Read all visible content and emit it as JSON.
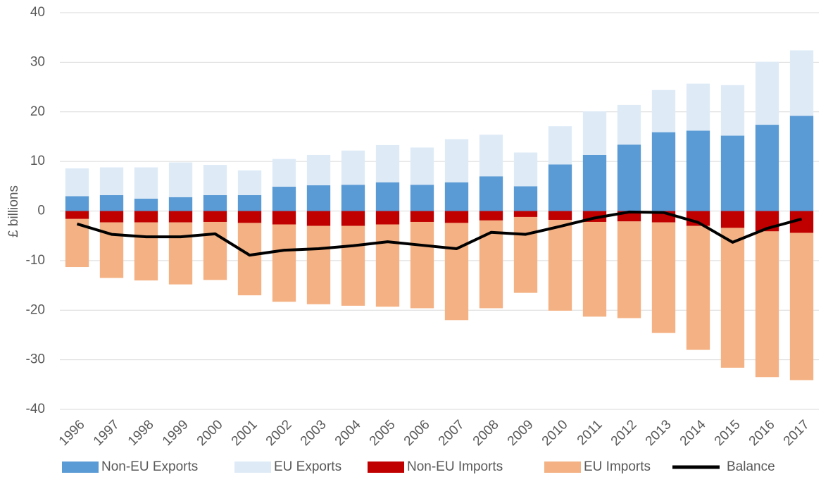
{
  "chart_data": {
    "type": "bar",
    "stacked": true,
    "y_label": "£ billions",
    "categories": [
      "1996",
      "1997",
      "1998",
      "1999",
      "2000",
      "2001",
      "2002",
      "2003",
      "2004",
      "2005",
      "2006",
      "2007",
      "2008",
      "2009",
      "2010",
      "2011",
      "2012",
      "2013",
      "2014",
      "2015",
      "2016",
      "2017"
    ],
    "ylim": [
      -40,
      40
    ],
    "yticks": [
      -40,
      -30,
      -20,
      -10,
      0,
      10,
      20,
      30,
      40
    ],
    "grid": true,
    "legend": "bottom",
    "series": [
      {
        "name": "Non-EU Exports",
        "color": "#5b9bd5",
        "values": [
          3.0,
          3.2,
          2.5,
          2.8,
          3.2,
          3.2,
          4.9,
          5.2,
          5.3,
          5.8,
          5.3,
          5.8,
          7.0,
          5.0,
          9.4,
          11.3,
          13.4,
          15.9,
          16.2,
          15.2,
          17.4,
          19.2
        ]
      },
      {
        "name": "EU Exports",
        "color": "#deebf7",
        "values": [
          5.6,
          5.6,
          6.3,
          7.0,
          6.1,
          5.0,
          5.6,
          6.1,
          6.9,
          7.5,
          7.5,
          8.7,
          8.4,
          6.8,
          7.7,
          8.8,
          8.0,
          8.5,
          9.5,
          10.2,
          12.7,
          13.2
        ]
      },
      {
        "name": "Non-EU Imports",
        "color": "#c00000",
        "values": [
          -1.6,
          -2.3,
          -2.3,
          -2.3,
          -2.2,
          -2.4,
          -2.7,
          -3.0,
          -3.0,
          -2.7,
          -2.2,
          -2.4,
          -1.9,
          -1.2,
          -1.8,
          -2.2,
          -2.1,
          -2.3,
          -3.0,
          -3.4,
          -4.1,
          -4.4
        ]
      },
      {
        "name": "EU Imports",
        "color": "#f4b183",
        "values": [
          -9.7,
          -11.2,
          -11.7,
          -12.5,
          -11.7,
          -14.6,
          -15.6,
          -15.8,
          -16.1,
          -16.6,
          -17.4,
          -19.6,
          -17.7,
          -15.3,
          -18.3,
          -19.1,
          -19.5,
          -22.3,
          -25.0,
          -28.2,
          -29.4,
          -29.7
        ]
      },
      {
        "name": "Balance",
        "type": "line",
        "color": "#000000",
        "values": [
          -2.6,
          -4.7,
          -5.2,
          -5.2,
          -4.6,
          -8.9,
          -7.9,
          -7.6,
          -7.0,
          -6.2,
          -6.9,
          -7.6,
          -4.3,
          -4.7,
          -3.1,
          -1.4,
          -0.2,
          -0.3,
          -2.3,
          -6.3,
          -3.5,
          -1.6
        ]
      }
    ]
  }
}
